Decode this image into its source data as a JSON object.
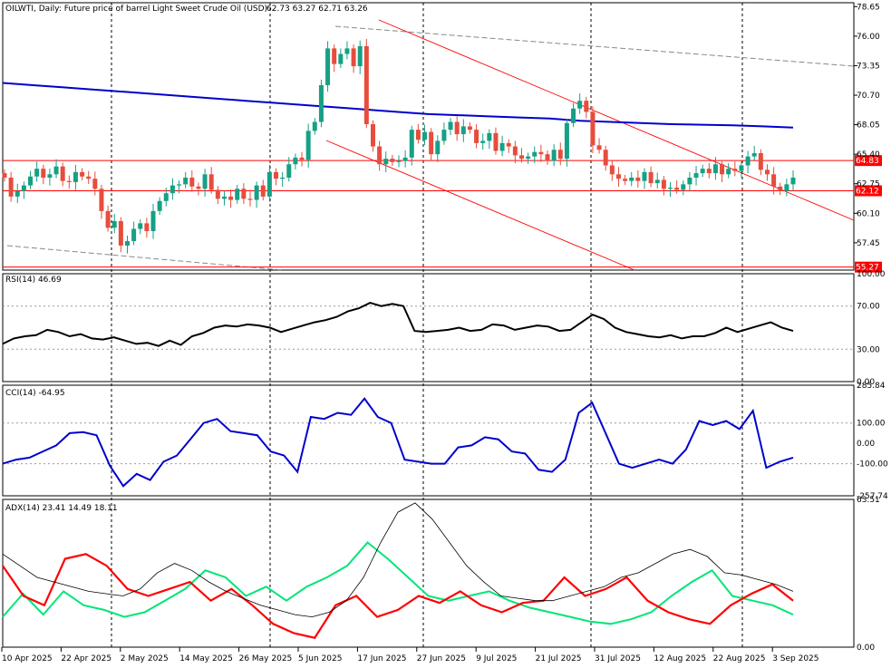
{
  "header": {
    "symbol": "OILWTI, Daily:  Future price of barrel Light Sweet Crude Oil (USD)",
    "ohlc": "62.73 63.27 62.71 63.26"
  },
  "colors": {
    "bull": "#16a085",
    "bear": "#e74c3c",
    "ma": "#0000cc",
    "level": "#ff0000",
    "rsi": "#000000",
    "cci": "#0000cc",
    "adx": "#000000",
    "plus_di": "#00e676",
    "minus_di": "#ff0000",
    "grid": "#000000"
  },
  "chart_data": [
    {
      "type": "candlestick",
      "title": "OILWTI, Daily:  Future price of barrel Light Sweet Crude Oil (USD)",
      "x_labels": [
        "10 Apr 2025",
        "22 Apr 2025",
        "2 May 2025",
        "14 May 2025",
        "26 May 2025",
        "5 Jun 2025",
        "17 Jun 2025",
        "27 Jun 2025",
        "9 Jul 2025",
        "21 Jul 2025",
        "31 Jul 2025",
        "12 Aug 2025",
        "22 Aug 2025",
        "3 Sep 2025"
      ],
      "y_ticks": [
        "78.65",
        "76.00",
        "73.35",
        "70.70",
        "68.05",
        "65.40",
        "62.75",
        "60.10",
        "57.45"
      ],
      "ylim": [
        55.0,
        79.0
      ],
      "closes": [
        63.3,
        61.6,
        62.1,
        62.6,
        63.4,
        64.1,
        63.3,
        63.6,
        64.3,
        63.0,
        62.9,
        63.8,
        63.4,
        63.2,
        62.3,
        60.3,
        58.8,
        59.4,
        57.2,
        57.6,
        58.7,
        59.2,
        58.5,
        60.3,
        61.2,
        61.9,
        62.6,
        62.7,
        63.3,
        62.5,
        62.3,
        63.6,
        62.2,
        61.4,
        61.6,
        61.3,
        62.3,
        61.4,
        61.3,
        62.6,
        61.6,
        63.8,
        63.2,
        63.3,
        64.5,
        65.1,
        64.9,
        67.5,
        68.3,
        71.6,
        74.9,
        73.5,
        74.4,
        74.9,
        73.3,
        75.1,
        68.1,
        66.1,
        64.5,
        65.0,
        64.7,
        64.8,
        65.1,
        67.6,
        66.7,
        67.4,
        65.4,
        66.6,
        67.6,
        68.3,
        67.2,
        67.9,
        67.6,
        66.4,
        66.6,
        67.3,
        65.7,
        66.4,
        66.1,
        65.3,
        65.0,
        65.2,
        65.6,
        65.4,
        64.8,
        65.8,
        65.0,
        68.2,
        69.5,
        70.2,
        69.2,
        66.2,
        65.8,
        64.4,
        63.6,
        63.2,
        63.0,
        63.3,
        63.0,
        63.8,
        62.8,
        63.1,
        62.3,
        62.4,
        62.2,
        62.7,
        63.3,
        63.7,
        64.1,
        63.7,
        64.5,
        63.6,
        64.1,
        63.9,
        64.4,
        65.2,
        65.5,
        64.0,
        63.6,
        62.5,
        62.1,
        62.7,
        63.3
      ]
    },
    {
      "type": "line",
      "name": "moving average",
      "values": [
        71.8,
        71.6,
        71.4,
        71.2,
        71.0,
        70.8,
        70.6,
        70.4,
        70.2,
        70.0,
        69.8,
        69.6,
        69.4,
        69.2,
        69.0,
        68.9,
        68.8,
        68.7,
        68.6,
        68.4,
        68.3,
        68.2,
        68.1,
        68.05,
        68.0,
        67.9,
        67.8
      ]
    },
    {
      "type": "line",
      "name": "RSI(14) 46.69",
      "y_ticks": [
        "100.00",
        "70.00",
        "30.00",
        "0.00"
      ],
      "ylim": [
        0,
        100
      ],
      "values": [
        35,
        40,
        42,
        43,
        48,
        46,
        42,
        44,
        40,
        39,
        41,
        38,
        35,
        36,
        33,
        38,
        34,
        42,
        45,
        50,
        52,
        51,
        53,
        52,
        50,
        46,
        49,
        52,
        55,
        57,
        60,
        65,
        68,
        73,
        70,
        72,
        70,
        47,
        46,
        47,
        48,
        50,
        47,
        48,
        53,
        52,
        48,
        50,
        52,
        51,
        47,
        48,
        55,
        62,
        58,
        50,
        46,
        44,
        42,
        41,
        43,
        40,
        42,
        42,
        45,
        50,
        46,
        49,
        52,
        55,
        50,
        47
      ]
    },
    {
      "type": "line",
      "name": "CCI(14) -64.95",
      "y_ticks": [
        "285.84",
        "100.00",
        "0.00",
        "-100.00",
        "-257.74"
      ],
      "ylim": [
        -257.74,
        285.84
      ],
      "values": [
        -100,
        -80,
        -70,
        -40,
        -10,
        50,
        55,
        40,
        -110,
        -210,
        -150,
        -180,
        -90,
        -60,
        20,
        100,
        120,
        60,
        50,
        40,
        -40,
        -60,
        -140,
        130,
        120,
        150,
        140,
        220,
        130,
        100,
        -80,
        -90,
        -100,
        -100,
        -20,
        -10,
        30,
        20,
        -40,
        -50,
        -130,
        -140,
        -80,
        150,
        200,
        50,
        -100,
        -120,
        -100,
        -80,
        -100,
        -30,
        110,
        90,
        110,
        70,
        160,
        -120,
        -90,
        -70
      ]
    },
    {
      "type": "line",
      "name": "ADX(14) 23.41 14.49 18.11",
      "y_ticks": [
        "63.51",
        "0.00"
      ],
      "ylim": [
        0,
        63.51
      ],
      "series": [
        {
          "name": "ADX",
          "values": [
            40,
            35,
            30,
            28,
            26,
            24,
            23,
            22,
            25,
            32,
            36,
            33,
            28,
            24,
            21,
            18,
            16,
            14,
            13,
            15,
            20,
            30,
            45,
            58,
            62,
            55,
            45,
            35,
            28,
            22,
            21,
            20,
            20,
            22,
            24,
            26,
            30,
            32,
            36,
            40,
            42,
            39,
            32,
            31,
            29,
            27,
            24
          ]
        },
        {
          "name": "+DI",
          "values": [
            13,
            23,
            14,
            24,
            18,
            16,
            13,
            15,
            20,
            25,
            33,
            30,
            22,
            26,
            20,
            26,
            30,
            35,
            45,
            38,
            30,
            22,
            20,
            22,
            24,
            20,
            17,
            15,
            13,
            11,
            10,
            12,
            15,
            22,
            28,
            33,
            22,
            20,
            18,
            14
          ]
        },
        {
          "name": "-DI",
          "values": [
            35,
            22,
            18,
            38,
            40,
            35,
            25,
            22,
            25,
            28,
            20,
            25,
            18,
            10,
            6,
            4,
            18,
            22,
            13,
            16,
            22,
            19,
            24,
            18,
            15,
            19,
            20,
            30,
            22,
            25,
            30,
            20,
            15,
            12,
            10,
            18,
            23,
            27,
            20
          ]
        }
      ]
    }
  ],
  "levels": [
    {
      "label": "64.83",
      "value": 64.83
    },
    {
      "label": "62.12",
      "value": 62.12
    },
    {
      "label": "55.27",
      "value": 55.27
    }
  ],
  "rsi_label": "RSI(14) 46.69",
  "cci_label": "CCI(14) -64.95",
  "adx_label": "ADX(14) 23.41 14.49 18.11",
  "price_ticks": [
    "78.65",
    "76.00",
    "73.35",
    "70.70",
    "68.05",
    "65.40",
    "62.75",
    "60.10",
    "57.45"
  ],
  "rsi_ticks": [
    "100.00",
    "70.00",
    "30.00",
    "0.00"
  ],
  "cci_ticks": [
    "285.84",
    "100.00",
    "0.00",
    "-100.00",
    "-257.74"
  ],
  "adx_ticks": [
    "63.51",
    "0.00"
  ],
  "x_labels": [
    "10 Apr 2025",
    "22 Apr 2025",
    "2 May 2025",
    "14 May 2025",
    "26 May 2025",
    "5 Jun 2025",
    "17 Jun 2025",
    "27 Jun 2025",
    "9 Jul 2025",
    "21 Jul 2025",
    "31 Jul 2025",
    "12 Aug 2025",
    "22 Aug 2025",
    "3 Sep 2025"
  ]
}
